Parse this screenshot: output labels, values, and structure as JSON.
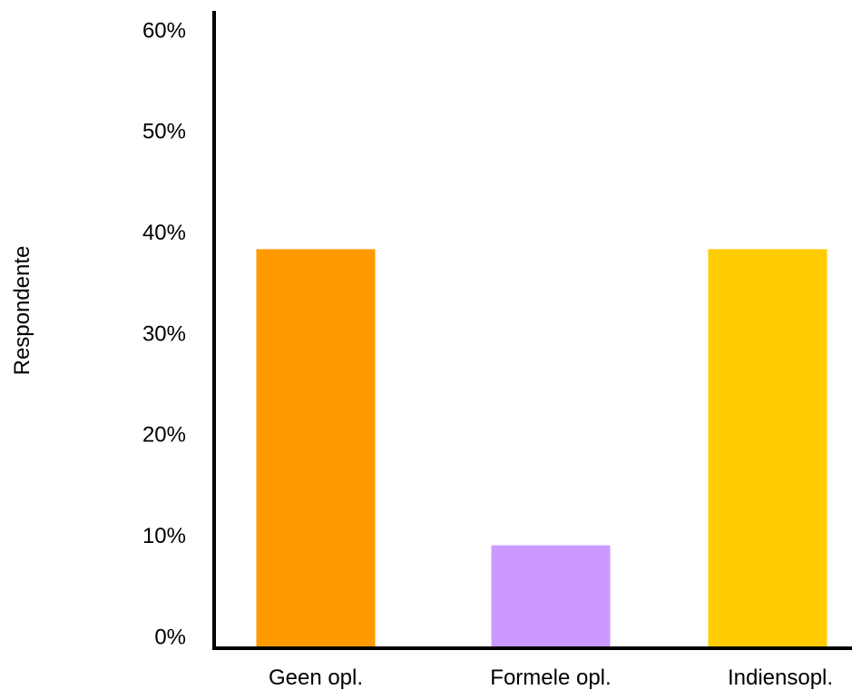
{
  "chart_data": {
    "type": "bar",
    "title": "",
    "xlabel": "",
    "ylabel": "Respondente",
    "ylim": [
      0,
      60
    ],
    "yticks": [
      0,
      10,
      20,
      30,
      40,
      50,
      60
    ],
    "ytick_labels": [
      "0%",
      "10%",
      "20%",
      "30%",
      "40%",
      "50%",
      "60%"
    ],
    "categories": [
      "Geen opl.",
      "Formele opl.",
      "Indiensopl."
    ],
    "values": [
      39.3,
      10,
      39.3
    ],
    "colors": [
      "#FF9900",
      "#CC99FF",
      "#FFCC00"
    ],
    "grid": false,
    "legend": "none"
  }
}
